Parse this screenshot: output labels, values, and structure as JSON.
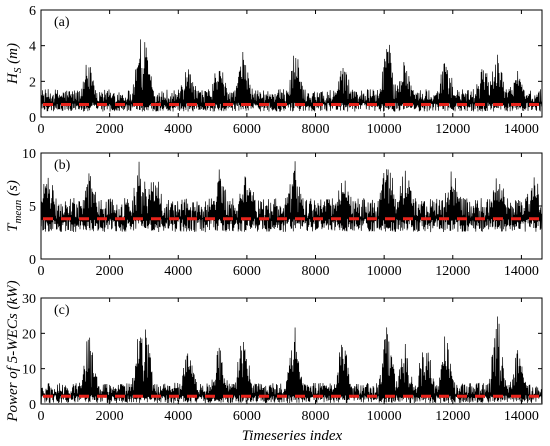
{
  "xlabel": "Timeseries index",
  "chart_data": [
    {
      "type": "line",
      "panel": "(a)",
      "ylabel_main": "H",
      "ylabel_sub": "S",
      "ylabel_unit": " (m)",
      "xlim": [
        0,
        14600
      ],
      "ylim": [
        0,
        6
      ],
      "xticks": [
        0,
        2000,
        4000,
        6000,
        8000,
        10000,
        12000,
        14000
      ],
      "yticks": [
        0,
        2,
        4,
        6
      ],
      "mean_value": 0.7,
      "base_value": 0.8,
      "spread": 0.55,
      "peaks": [
        [
          1400,
          3.2
        ],
        [
          2900,
          4.0
        ],
        [
          3050,
          4.0
        ],
        [
          4300,
          2.5
        ],
        [
          5200,
          2.8
        ],
        [
          5900,
          3.4
        ],
        [
          7400,
          3.5
        ],
        [
          8800,
          3.0
        ],
        [
          10100,
          4.4
        ],
        [
          10600,
          2.8
        ],
        [
          11800,
          3.0
        ],
        [
          12900,
          2.8
        ],
        [
          13300,
          3.5
        ],
        [
          13900,
          2.2
        ]
      ],
      "series": [
        {
          "values_description": "",
          "color": "#000000"
        },
        {
          "name": "",
          "color": "#e8221a"
        }
      ]
    },
    {
      "type": "line",
      "panel": "(b)",
      "ylabel_main": "T",
      "ylabel_sub": "mean",
      "ylabel_unit": " (s)",
      "xlim": [
        0,
        14600
      ],
      "ylim": [
        0,
        10
      ],
      "xticks": [
        0,
        2000,
        4000,
        6000,
        8000,
        10000,
        12000,
        14000
      ],
      "yticks": [
        0,
        5,
        10
      ],
      "mean_value": 3.8,
      "base_value": 3.8,
      "spread": 1.4,
      "peaks": [
        [
          200,
          7.0
        ],
        [
          1400,
          7.5
        ],
        [
          2900,
          8.6
        ],
        [
          3300,
          7.5
        ],
        [
          5200,
          7.5
        ],
        [
          6000,
          7.0
        ],
        [
          7400,
          7.8
        ],
        [
          8800,
          6.8
        ],
        [
          10100,
          8.8
        ],
        [
          10600,
          7.3
        ],
        [
          12000,
          7.0
        ],
        [
          13300,
          7.5
        ],
        [
          14400,
          6.2
        ]
      ],
      "series": [
        {
          "color": "#000000"
        },
        {
          "color": "#e8221a"
        }
      ]
    },
    {
      "type": "line",
      "panel": "(c)",
      "ylabel_main": "Power of 5-WECs",
      "ylabel_sub": "",
      "ylabel_unit": " (kW)",
      "xlim": [
        0,
        14600
      ],
      "ylim": [
        0,
        30
      ],
      "xticks": [
        0,
        2000,
        4000,
        6000,
        8000,
        10000,
        12000,
        14000
      ],
      "yticks": [
        0,
        10,
        20,
        30
      ],
      "mean_value": 2.2,
      "base_value": 2.5,
      "spread": 2.5,
      "peaks": [
        [
          1400,
          21
        ],
        [
          2900,
          24
        ],
        [
          3050,
          24
        ],
        [
          4300,
          17
        ],
        [
          5200,
          15
        ],
        [
          5900,
          19
        ],
        [
          7400,
          22
        ],
        [
          8800,
          19
        ],
        [
          10100,
          25
        ],
        [
          10600,
          16
        ],
        [
          11200,
          20
        ],
        [
          11800,
          20
        ],
        [
          13300,
          24
        ],
        [
          13900,
          14
        ]
      ],
      "series": [
        {
          "color": "#000000"
        },
        {
          "color": "#e8221a"
        }
      ]
    }
  ]
}
